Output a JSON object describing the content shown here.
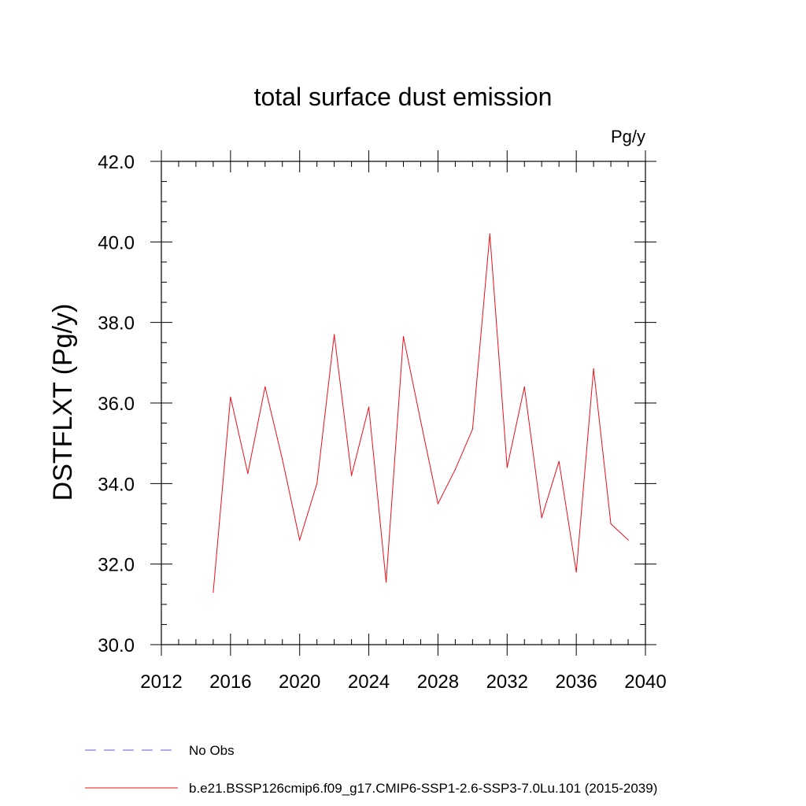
{
  "chart_data": {
    "type": "line",
    "title": "total surface dust emission",
    "units_label": "Pg/y",
    "ylabel": "DSTFLXT  (Pg/y)",
    "xlabel": "",
    "xlim": [
      2012,
      2040
    ],
    "ylim": [
      30.0,
      42.0
    ],
    "x_ticks": [
      2012,
      2016,
      2020,
      2024,
      2028,
      2032,
      2036,
      2040
    ],
    "x_minor_step": 1,
    "y_ticks": [
      30.0,
      32.0,
      34.0,
      36.0,
      38.0,
      40.0,
      42.0
    ],
    "y_tick_labels": [
      "30.0",
      "32.0",
      "34.0",
      "36.0",
      "38.0",
      "40.0",
      "42.0"
    ],
    "y_minor_step": 0.5,
    "grid": false,
    "series": [
      {
        "name": "b.e21.BSSP126cmip6.f09_g17.CMIP6-SSP1-2.6-SSP3-7.0Lu.101 (2015-2039)",
        "color": "#e8101a",
        "x": [
          2015,
          2016,
          2017,
          2018,
          2019,
          2020,
          2021,
          2022,
          2023,
          2024,
          2025,
          2026,
          2027,
          2028,
          2029,
          2030,
          2031,
          2032,
          2033,
          2034,
          2035,
          2036,
          2037,
          2038,
          2039
        ],
        "values": [
          31.3,
          36.15,
          34.25,
          36.4,
          34.6,
          32.6,
          34.0,
          37.7,
          34.2,
          35.9,
          31.55,
          37.65,
          35.55,
          33.5,
          34.35,
          35.35,
          40.2,
          34.4,
          36.4,
          33.15,
          34.55,
          31.8,
          36.85,
          33.0,
          32.6
        ]
      }
    ],
    "legend": {
      "placement": "bottom-left",
      "entries": [
        {
          "label": "No Obs",
          "style": "dashed",
          "color": "#6a5acd"
        },
        {
          "label": "b.e21.BSSP126cmip6.f09_g17.CMIP6-SSP1-2.6-SSP3-7.0Lu.101 (2015-2039)",
          "style": "solid",
          "color": "#e8101a"
        }
      ]
    }
  }
}
